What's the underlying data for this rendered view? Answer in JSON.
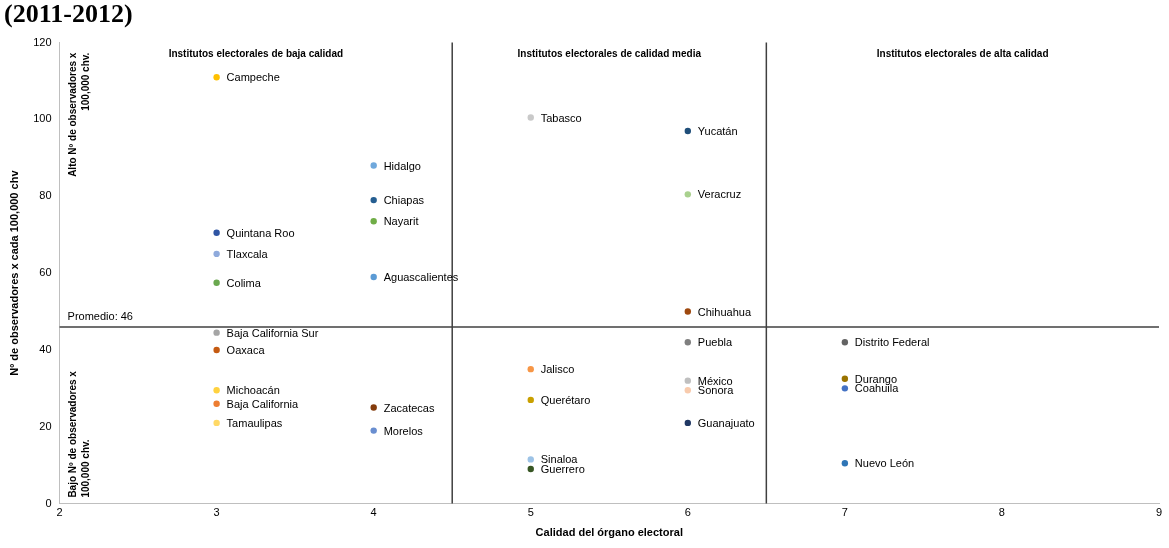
{
  "chart_data": {
    "type": "scatter",
    "title": "(2011-2012)",
    "xlabel": "Calidad del órgano electoral",
    "ylabel": "Nº de observadores x cada 100,000 chv",
    "xlim": [
      2,
      9
    ],
    "xticks": [
      2,
      3,
      4,
      5,
      6,
      7,
      8,
      9
    ],
    "ylim": [
      0,
      120
    ],
    "yticks": [
      0,
      20,
      40,
      60,
      80,
      100,
      120
    ],
    "grid": false,
    "legend": false,
    "marker": "circle",
    "ref_lines": [
      {
        "axis": "y",
        "value": 46,
        "label": "Promedio: 46",
        "color": "#404040"
      },
      {
        "axis": "x",
        "value": 4.5,
        "color": "#404040"
      },
      {
        "axis": "x",
        "value": 6.5,
        "color": "#404040"
      }
    ],
    "annotations": [
      "Institutos electorales de baja calidad",
      "Institutos electorales de calidad media",
      "Institutos electorales de alta calidad",
      "Alto Nº de observadores x 100,000 chv.",
      "Bajo Nº de observadores x 100,000 chv."
    ],
    "series": [
      {
        "name": "Campeche",
        "color": "#ffc000",
        "x": [
          3
        ],
        "values": [
          111
        ]
      },
      {
        "name": "Tabasco",
        "color": "#c9c9c9",
        "x": [
          5
        ],
        "values": [
          100.5
        ]
      },
      {
        "name": "Yucatán",
        "color": "#1f4e79",
        "x": [
          6
        ],
        "values": [
          97
        ]
      },
      {
        "name": "Hidalgo",
        "color": "#6fa8dc",
        "x": [
          4
        ],
        "values": [
          88
        ]
      },
      {
        "name": "Veracruz",
        "color": "#a9d18e",
        "x": [
          6
        ],
        "values": [
          80.5
        ]
      },
      {
        "name": "Chiapas",
        "color": "#255e91",
        "x": [
          4
        ],
        "values": [
          79
        ]
      },
      {
        "name": "Nayarit",
        "color": "#70ad47",
        "x": [
          4
        ],
        "values": [
          73.5
        ]
      },
      {
        "name": "Quintana Roo",
        "color": "#2f55a4",
        "x": [
          3
        ],
        "values": [
          70.5
        ]
      },
      {
        "name": "Tlaxcala",
        "color": "#8faadc",
        "x": [
          3
        ],
        "values": [
          65
        ]
      },
      {
        "name": "Aguascalientes",
        "color": "#5b9bd5",
        "x": [
          4
        ],
        "values": [
          59
        ]
      },
      {
        "name": "Colima",
        "color": "#6aa84f",
        "x": [
          3
        ],
        "values": [
          57.5
        ]
      },
      {
        "name": "Chihuahua",
        "color": "#9e480e",
        "x": [
          6
        ],
        "values": [
          50
        ]
      },
      {
        "name": "Baja California Sur",
        "color": "#a5a5a5",
        "x": [
          3
        ],
        "values": [
          44.5
        ]
      },
      {
        "name": "Puebla",
        "color": "#7f7f7f",
        "x": [
          6
        ],
        "values": [
          42
        ]
      },
      {
        "name": "Distrito Federal",
        "color": "#636363",
        "x": [
          7
        ],
        "values": [
          42
        ]
      },
      {
        "name": "Oaxaca",
        "color": "#c55a11",
        "x": [
          3
        ],
        "values": [
          40
        ]
      },
      {
        "name": "Jalisco",
        "color": "#f79646",
        "x": [
          5
        ],
        "values": [
          35
        ]
      },
      {
        "name": "Durango",
        "color": "#997300",
        "x": [
          7
        ],
        "values": [
          32.5
        ]
      },
      {
        "name": "México",
        "color": "#bfbfbf",
        "x": [
          6
        ],
        "values": [
          32
        ]
      },
      {
        "name": "Coahuila",
        "color": "#4472c4",
        "x": [
          7
        ],
        "values": [
          30
        ]
      },
      {
        "name": "Michoacán",
        "color": "#ffd23f",
        "x": [
          3
        ],
        "values": [
          29.5
        ]
      },
      {
        "name": "Sonora",
        "color": "#f8cbad",
        "x": [
          6
        ],
        "values": [
          29.5
        ]
      },
      {
        "name": "Querétaro",
        "color": "#c9a000",
        "x": [
          5
        ],
        "values": [
          27
        ]
      },
      {
        "name": "Baja California",
        "color": "#ed7d31",
        "x": [
          3
        ],
        "values": [
          26
        ]
      },
      {
        "name": "Zacatecas",
        "color": "#843c0c",
        "x": [
          4
        ],
        "values": [
          25
        ]
      },
      {
        "name": "Tamaulipas",
        "color": "#ffd966",
        "x": [
          3
        ],
        "values": [
          21
        ]
      },
      {
        "name": "Guanajuato",
        "color": "#203864",
        "x": [
          6
        ],
        "values": [
          21
        ]
      },
      {
        "name": "Morelos",
        "color": "#698ed0",
        "x": [
          4
        ],
        "values": [
          19
        ]
      },
      {
        "name": "Sinaloa",
        "color": "#9dc3e6",
        "x": [
          5
        ],
        "values": [
          11.5
        ]
      },
      {
        "name": "Nuevo León",
        "color": "#2e75b6",
        "x": [
          7
        ],
        "values": [
          10.5
        ]
      },
      {
        "name": "Guerrero",
        "color": "#375623",
        "x": [
          5
        ],
        "values": [
          9
        ]
      }
    ]
  }
}
